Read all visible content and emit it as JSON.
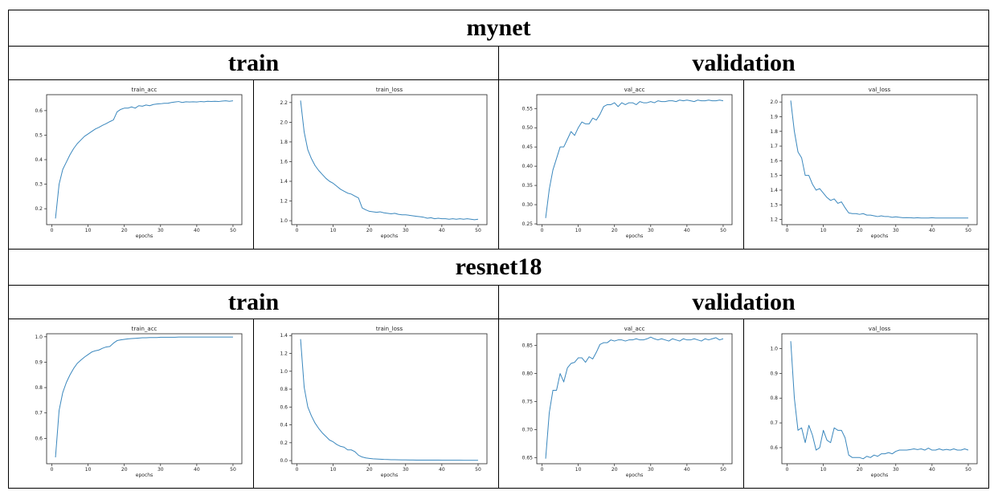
{
  "sections": [
    {
      "title": "mynet",
      "subheaders": [
        "train",
        "validation"
      ],
      "panels": [
        "mynet_train_acc",
        "mynet_train_loss",
        "mynet_val_acc",
        "mynet_val_loss"
      ]
    },
    {
      "title": "resnet18",
      "subheaders": [
        "train",
        "validation"
      ],
      "panels": [
        "resnet18_train_acc",
        "resnet18_train_loss",
        "resnet18_val_acc",
        "resnet18_val_loss"
      ]
    }
  ],
  "chart_data": [
    {
      "id": "mynet_train_acc",
      "type": "line",
      "title": "train_acc",
      "xlabel": "epochs",
      "ylabel": "",
      "xlim": [
        -1.45,
        52.45
      ],
      "ylim": [
        0.135,
        0.665
      ],
      "xticks": [
        0,
        10,
        20,
        30,
        40,
        50
      ],
      "yticks": [
        0.2,
        0.3,
        0.4,
        0.5,
        0.6
      ],
      "ytick_labels": [
        "0.2",
        "0.3",
        "0.4",
        "0.5",
        "0.6"
      ],
      "color": "#3a87bd",
      "x": [
        1,
        2,
        3,
        4,
        5,
        6,
        7,
        8,
        9,
        10,
        11,
        12,
        13,
        14,
        15,
        16,
        17,
        18,
        19,
        20,
        21,
        22,
        23,
        24,
        25,
        26,
        27,
        28,
        29,
        30,
        31,
        32,
        33,
        34,
        35,
        36,
        37,
        38,
        39,
        40,
        41,
        42,
        43,
        44,
        45,
        46,
        47,
        48,
        49,
        50
      ],
      "y": [
        0.16,
        0.3,
        0.36,
        0.39,
        0.42,
        0.445,
        0.465,
        0.48,
        0.495,
        0.505,
        0.515,
        0.525,
        0.532,
        0.54,
        0.547,
        0.555,
        0.562,
        0.595,
        0.605,
        0.61,
        0.61,
        0.615,
        0.61,
        0.62,
        0.618,
        0.623,
        0.62,
        0.625,
        0.627,
        0.628,
        0.63,
        0.63,
        0.633,
        0.635,
        0.637,
        0.633,
        0.636,
        0.635,
        0.636,
        0.635,
        0.637,
        0.636,
        0.638,
        0.637,
        0.638,
        0.637,
        0.639,
        0.64,
        0.638,
        0.64
      ]
    },
    {
      "id": "mynet_train_loss",
      "type": "line",
      "title": "train_loss",
      "xlabel": "epochs",
      "ylabel": "",
      "xlim": [
        -1.45,
        52.45
      ],
      "ylim": [
        0.96,
        2.28
      ],
      "xticks": [
        0,
        10,
        20,
        30,
        40,
        50
      ],
      "yticks": [
        1.0,
        1.2,
        1.4,
        1.6,
        1.8,
        2.0,
        2.2
      ],
      "ytick_labels": [
        "1.0",
        "1.2",
        "1.4",
        "1.6",
        "1.8",
        "2.0",
        "2.2"
      ],
      "color": "#3a87bd",
      "x": [
        1,
        2,
        3,
        4,
        5,
        6,
        7,
        8,
        9,
        10,
        11,
        12,
        13,
        14,
        15,
        16,
        17,
        18,
        19,
        20,
        21,
        22,
        23,
        24,
        25,
        26,
        27,
        28,
        29,
        30,
        31,
        32,
        33,
        34,
        35,
        36,
        37,
        38,
        39,
        40,
        41,
        42,
        43,
        44,
        45,
        46,
        47,
        48,
        49,
        50
      ],
      "y": [
        2.22,
        1.9,
        1.72,
        1.63,
        1.56,
        1.51,
        1.47,
        1.43,
        1.4,
        1.38,
        1.35,
        1.32,
        1.3,
        1.28,
        1.27,
        1.25,
        1.23,
        1.13,
        1.11,
        1.095,
        1.09,
        1.085,
        1.09,
        1.08,
        1.075,
        1.07,
        1.075,
        1.065,
        1.06,
        1.06,
        1.055,
        1.05,
        1.045,
        1.04,
        1.035,
        1.025,
        1.03,
        1.02,
        1.025,
        1.02,
        1.02,
        1.015,
        1.02,
        1.015,
        1.02,
        1.015,
        1.02,
        1.015,
        1.01,
        1.015
      ]
    },
    {
      "id": "mynet_val_acc",
      "type": "line",
      "title": "val_acc",
      "xlabel": "epochs",
      "ylabel": "",
      "xlim": [
        -1.45,
        52.45
      ],
      "ylim": [
        0.248,
        0.586
      ],
      "xticks": [
        0,
        10,
        20,
        30,
        40,
        50
      ],
      "yticks": [
        0.25,
        0.3,
        0.35,
        0.4,
        0.45,
        0.5,
        0.55
      ],
      "ytick_labels": [
        "0.25",
        "0.30",
        "0.35",
        "0.40",
        "0.45",
        "0.50",
        "0.55"
      ],
      "color": "#3a87bd",
      "x": [
        1,
        2,
        3,
        4,
        5,
        6,
        7,
        8,
        9,
        10,
        11,
        12,
        13,
        14,
        15,
        16,
        17,
        18,
        19,
        20,
        21,
        22,
        23,
        24,
        25,
        26,
        27,
        28,
        29,
        30,
        31,
        32,
        33,
        34,
        35,
        36,
        37,
        38,
        39,
        40,
        41,
        42,
        43,
        44,
        45,
        46,
        47,
        48,
        49,
        50
      ],
      "y": [
        0.265,
        0.34,
        0.39,
        0.42,
        0.45,
        0.45,
        0.47,
        0.49,
        0.48,
        0.5,
        0.515,
        0.51,
        0.51,
        0.525,
        0.52,
        0.535,
        0.555,
        0.56,
        0.56,
        0.565,
        0.555,
        0.565,
        0.56,
        0.565,
        0.565,
        0.56,
        0.568,
        0.565,
        0.565,
        0.568,
        0.565,
        0.57,
        0.568,
        0.568,
        0.57,
        0.57,
        0.568,
        0.572,
        0.57,
        0.572,
        0.57,
        0.568,
        0.572,
        0.57,
        0.57,
        0.572,
        0.57,
        0.57,
        0.572,
        0.57
      ]
    },
    {
      "id": "mynet_val_loss",
      "type": "line",
      "title": "val_loss",
      "xlabel": "epochs",
      "ylabel": "",
      "xlim": [
        -1.45,
        52.45
      ],
      "ylim": [
        1.165,
        2.05
      ],
      "xticks": [
        0,
        10,
        20,
        30,
        40,
        50
      ],
      "yticks": [
        1.2,
        1.3,
        1.4,
        1.5,
        1.6,
        1.7,
        1.8,
        1.9,
        2.0
      ],
      "ytick_labels": [
        "1.2",
        "1.3",
        "1.4",
        "1.5",
        "1.6",
        "1.7",
        "1.8",
        "1.9",
        "2.0"
      ],
      "color": "#3a87bd",
      "x": [
        1,
        2,
        3,
        4,
        5,
        6,
        7,
        8,
        9,
        10,
        11,
        12,
        13,
        14,
        15,
        16,
        17,
        18,
        19,
        20,
        21,
        22,
        23,
        24,
        25,
        26,
        27,
        28,
        29,
        30,
        31,
        32,
        33,
        34,
        35,
        36,
        37,
        38,
        39,
        40,
        41,
        42,
        43,
        44,
        45,
        46,
        47,
        48,
        49,
        50
      ],
      "y": [
        2.01,
        1.8,
        1.66,
        1.62,
        1.5,
        1.5,
        1.44,
        1.4,
        1.41,
        1.38,
        1.35,
        1.33,
        1.34,
        1.31,
        1.32,
        1.28,
        1.245,
        1.24,
        1.24,
        1.235,
        1.24,
        1.23,
        1.23,
        1.225,
        1.22,
        1.225,
        1.22,
        1.22,
        1.215,
        1.218,
        1.215,
        1.212,
        1.213,
        1.212,
        1.21,
        1.212,
        1.21,
        1.21,
        1.21,
        1.212,
        1.21,
        1.21,
        1.21,
        1.21,
        1.21,
        1.21,
        1.21,
        1.21,
        1.21,
        1.21
      ]
    },
    {
      "id": "resnet18_train_acc",
      "type": "line",
      "title": "train_acc",
      "xlabel": "epochs",
      "ylabel": "",
      "xlim": [
        -1.45,
        52.45
      ],
      "ylim": [
        0.5,
        1.012
      ],
      "xticks": [
        0,
        10,
        20,
        30,
        40,
        50
      ],
      "yticks": [
        0.6,
        0.7,
        0.8,
        0.9,
        1.0
      ],
      "ytick_labels": [
        "0.6",
        "0.7",
        "0.8",
        "0.9",
        "1.0"
      ],
      "color": "#3a87bd",
      "x": [
        1,
        2,
        3,
        4,
        5,
        6,
        7,
        8,
        9,
        10,
        11,
        12,
        13,
        14,
        15,
        16,
        17,
        18,
        19,
        20,
        21,
        22,
        23,
        24,
        25,
        26,
        27,
        28,
        29,
        30,
        31,
        32,
        33,
        34,
        35,
        36,
        37,
        38,
        39,
        40,
        41,
        42,
        43,
        44,
        45,
        46,
        47,
        48,
        49,
        50
      ],
      "y": [
        0.525,
        0.71,
        0.78,
        0.82,
        0.85,
        0.875,
        0.895,
        0.908,
        0.92,
        0.93,
        0.94,
        0.945,
        0.948,
        0.955,
        0.96,
        0.962,
        0.975,
        0.985,
        0.988,
        0.99,
        0.992,
        0.993,
        0.994,
        0.995,
        0.996,
        0.996,
        0.997,
        0.997,
        0.997,
        0.998,
        0.998,
        0.998,
        0.998,
        0.998,
        0.999,
        0.999,
        0.999,
        0.999,
        0.999,
        0.999,
        0.999,
        0.999,
        0.999,
        0.999,
        0.999,
        0.999,
        0.999,
        0.999,
        0.999,
        0.999
      ]
    },
    {
      "id": "resnet18_train_loss",
      "type": "line",
      "title": "train_loss",
      "xlabel": "epochs",
      "ylabel": "",
      "xlim": [
        -1.45,
        52.45
      ],
      "ylim": [
        -0.035,
        1.42
      ],
      "xticks": [
        0,
        10,
        20,
        30,
        40,
        50
      ],
      "yticks": [
        0.0,
        0.2,
        0.4,
        0.6,
        0.8,
        1.0,
        1.2,
        1.4
      ],
      "ytick_labels": [
        "0.0",
        "0.2",
        "0.4",
        "0.6",
        "0.8",
        "1.0",
        "1.2",
        "1.4"
      ],
      "color": "#3a87bd",
      "x": [
        1,
        2,
        3,
        4,
        5,
        6,
        7,
        8,
        9,
        10,
        11,
        12,
        13,
        14,
        15,
        16,
        17,
        18,
        19,
        20,
        21,
        22,
        23,
        24,
        25,
        26,
        27,
        28,
        29,
        30,
        31,
        32,
        33,
        34,
        35,
        36,
        37,
        38,
        39,
        40,
        41,
        42,
        43,
        44,
        45,
        46,
        47,
        48,
        49,
        50
      ],
      "y": [
        1.36,
        0.82,
        0.6,
        0.5,
        0.42,
        0.36,
        0.31,
        0.27,
        0.23,
        0.21,
        0.18,
        0.16,
        0.15,
        0.12,
        0.12,
        0.1,
        0.06,
        0.04,
        0.03,
        0.025,
        0.02,
        0.018,
        0.015,
        0.013,
        0.012,
        0.01,
        0.01,
        0.009,
        0.008,
        0.008,
        0.007,
        0.007,
        0.006,
        0.006,
        0.006,
        0.005,
        0.005,
        0.005,
        0.005,
        0.004,
        0.004,
        0.004,
        0.004,
        0.004,
        0.004,
        0.003,
        0.003,
        0.003,
        0.003,
        0.003
      ]
    },
    {
      "id": "resnet18_val_acc",
      "type": "line",
      "title": "val_acc",
      "xlabel": "epochs",
      "ylabel": "",
      "xlim": [
        -1.45,
        52.45
      ],
      "ylim": [
        0.639,
        0.871
      ],
      "xticks": [
        0,
        10,
        20,
        30,
        40,
        50
      ],
      "yticks": [
        0.65,
        0.7,
        0.75,
        0.8,
        0.85
      ],
      "ytick_labels": [
        "0.65",
        "0.70",
        "0.75",
        "0.80",
        "0.85"
      ],
      "color": "#3a87bd",
      "x": [
        1,
        2,
        3,
        4,
        5,
        6,
        7,
        8,
        9,
        10,
        11,
        12,
        13,
        14,
        15,
        16,
        17,
        18,
        19,
        20,
        21,
        22,
        23,
        24,
        25,
        26,
        27,
        28,
        29,
        30,
        31,
        32,
        33,
        34,
        35,
        36,
        37,
        38,
        39,
        40,
        41,
        42,
        43,
        44,
        45,
        46,
        47,
        48,
        49,
        50
      ],
      "y": [
        0.648,
        0.73,
        0.77,
        0.77,
        0.8,
        0.785,
        0.81,
        0.818,
        0.82,
        0.828,
        0.828,
        0.82,
        0.83,
        0.826,
        0.838,
        0.852,
        0.855,
        0.855,
        0.86,
        0.858,
        0.86,
        0.86,
        0.858,
        0.86,
        0.86,
        0.862,
        0.86,
        0.86,
        0.862,
        0.865,
        0.862,
        0.86,
        0.862,
        0.86,
        0.858,
        0.862,
        0.86,
        0.858,
        0.862,
        0.86,
        0.86,
        0.862,
        0.86,
        0.858,
        0.862,
        0.86,
        0.862,
        0.864,
        0.86,
        0.862
      ]
    },
    {
      "id": "resnet18_val_loss",
      "type": "line",
      "title": "val_loss",
      "xlabel": "epochs",
      "ylabel": "",
      "xlim": [
        -1.45,
        52.45
      ],
      "ylim": [
        0.535,
        1.06
      ],
      "xticks": [
        0,
        10,
        20,
        30,
        40,
        50
      ],
      "yticks": [
        0.6,
        0.7,
        0.8,
        0.9,
        1.0
      ],
      "ytick_labels": [
        "0.6",
        "0.7",
        "0.8",
        "0.9",
        "1.0"
      ],
      "color": "#3a87bd",
      "x": [
        1,
        2,
        3,
        4,
        5,
        6,
        7,
        8,
        9,
        10,
        11,
        12,
        13,
        14,
        15,
        16,
        17,
        18,
        19,
        20,
        21,
        22,
        23,
        24,
        25,
        26,
        27,
        28,
        29,
        30,
        31,
        32,
        33,
        34,
        35,
        36,
        37,
        38,
        39,
        40,
        41,
        42,
        43,
        44,
        45,
        46,
        47,
        48,
        49,
        50
      ],
      "y": [
        1.03,
        0.8,
        0.67,
        0.68,
        0.62,
        0.69,
        0.65,
        0.59,
        0.6,
        0.67,
        0.63,
        0.62,
        0.68,
        0.67,
        0.67,
        0.64,
        0.57,
        0.56,
        0.56,
        0.56,
        0.555,
        0.565,
        0.56,
        0.57,
        0.565,
        0.575,
        0.575,
        0.58,
        0.575,
        0.585,
        0.59,
        0.59,
        0.59,
        0.592,
        0.595,
        0.592,
        0.595,
        0.59,
        0.598,
        0.59,
        0.59,
        0.595,
        0.59,
        0.593,
        0.59,
        0.595,
        0.59,
        0.59,
        0.595,
        0.59
      ]
    }
  ]
}
